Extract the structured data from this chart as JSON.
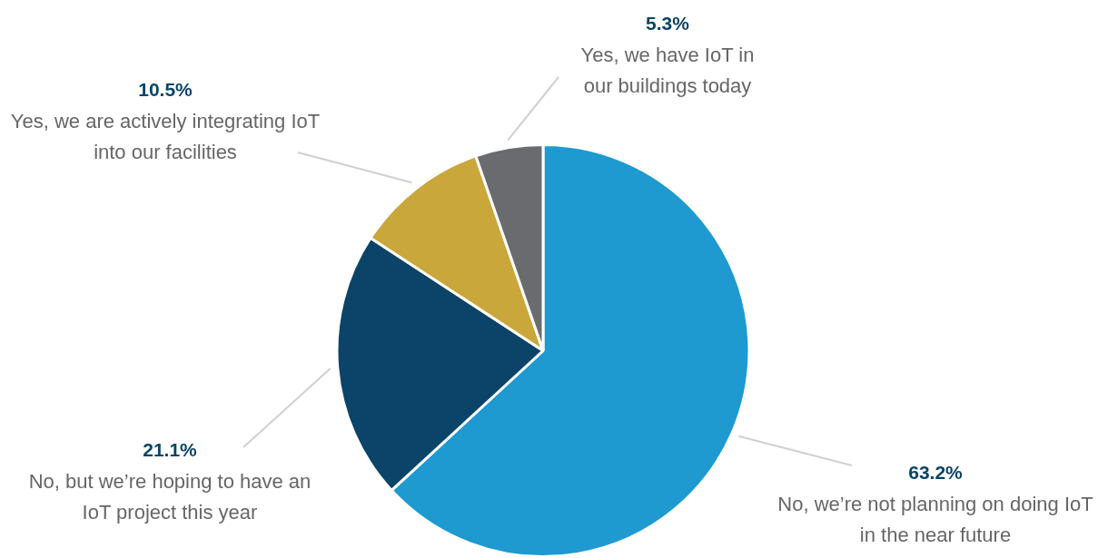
{
  "chart_data": {
    "type": "pie",
    "categories": [
      "No, we’re not planning on doing IoT in the near future",
      "No, but we’re hoping to have an IoT project this year",
      "Yes, we are actively integrating IoT into our facilities",
      "Yes, we have IoT in our buildings today"
    ],
    "values": [
      63.2,
      21.1,
      10.5,
      5.3
    ],
    "value_labels": [
      "63.2%",
      "21.1%",
      "10.5%",
      "5.3%"
    ],
    "colors": [
      "#1e9ad0",
      "#0b4468",
      "#c9a73b",
      "#6a6b6f"
    ],
    "legend": false
  }
}
